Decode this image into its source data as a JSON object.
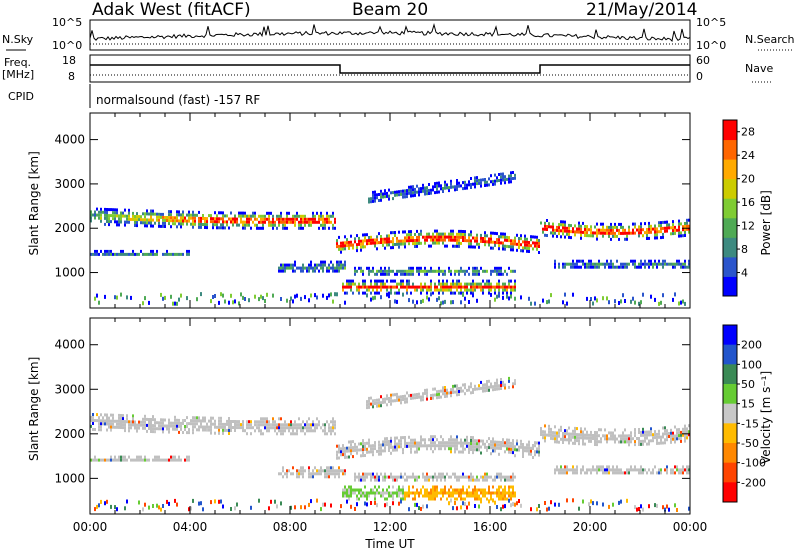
{
  "header": {
    "title": "Adak West (fitACF)",
    "beam": "Beam 20",
    "date": "21/May/2014"
  },
  "top_panels": {
    "nsky_label": "N.Sky",
    "nsearch_label": "N.Search",
    "left_ticks": [
      "10^5",
      "10^0"
    ],
    "right_ticks": [
      "10^5",
      "10^0"
    ],
    "freq_label": "Freq.",
    "freq_unit": "[MHz]",
    "freq_ticks": [
      "18",
      "8"
    ],
    "nave_label": "Nave",
    "nave_ticks": [
      "60",
      "0"
    ],
    "cpid_label": "CPID",
    "cpid_text": "normalsound (fast) -157 RF"
  },
  "colors": {
    "power_scale": [
      "#0000ff",
      "#2b55cc",
      "#3d8a80",
      "#4faa55",
      "#7fcc33",
      "#cccc00",
      "#ffaa00",
      "#ff6600",
      "#ff0000"
    ],
    "velocity_scale": [
      "#0000ff",
      "#2255cc",
      "#3a8a55",
      "#66cc33",
      "#c8c8c8",
      "#ffbb00",
      "#ff8800",
      "#ff4400",
      "#ff0000"
    ],
    "ground_scatter": "#c0c0c0"
  },
  "chart_data": [
    {
      "type": "heatmap",
      "name": "power",
      "ylabel": "Slant Range [km]",
      "yticks": [
        1000,
        2000,
        3000,
        4000
      ],
      "ylim": [
        200,
        4600
      ],
      "xlim": [
        0,
        24
      ],
      "xticks": [
        "00:00",
        "04:00",
        "08:00",
        "12:00",
        "16:00",
        "20:00",
        "00:00"
      ],
      "colorbar_label": "Power [dB]",
      "colorbar_ticks": [
        28,
        24,
        20,
        16,
        12,
        8,
        4
      ],
      "colorbar_range": [
        0,
        30
      ]
    },
    {
      "type": "heatmap",
      "name": "velocity",
      "ylabel": "Slant Range [km]",
      "yticks": [
        1000,
        2000,
        3000,
        4000
      ],
      "ylim": [
        200,
        4600
      ],
      "xlim": [
        0,
        24
      ],
      "xticks": [
        "00:00",
        "04:00",
        "08:00",
        "12:00",
        "16:00",
        "20:00",
        "00:00"
      ],
      "xlabel": "Time UT",
      "colorbar_label": "Velocity [m s⁻¹]",
      "colorbar_ticks": [
        200,
        100,
        50,
        15,
        -15,
        -50,
        -100,
        -200
      ]
    }
  ]
}
